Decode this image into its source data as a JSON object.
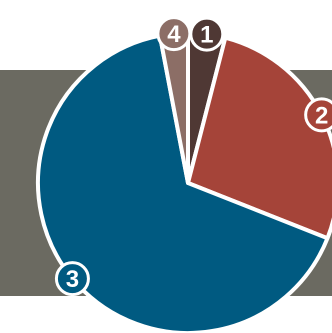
{
  "chart_data": {
    "type": "pie",
    "title": "",
    "legend": "none",
    "slices": [
      {
        "label": "1",
        "value": 4,
        "color": "#4f3834"
      },
      {
        "label": "2",
        "value": 27,
        "color": "#a54439"
      },
      {
        "label": "3",
        "value": 66,
        "color": "#005a81"
      },
      {
        "label": "4",
        "value": 3,
        "color": "#8c6e66"
      }
    ],
    "band_color": "#6b6a61",
    "start_angle_deg": 0,
    "direction": "clockwise"
  }
}
